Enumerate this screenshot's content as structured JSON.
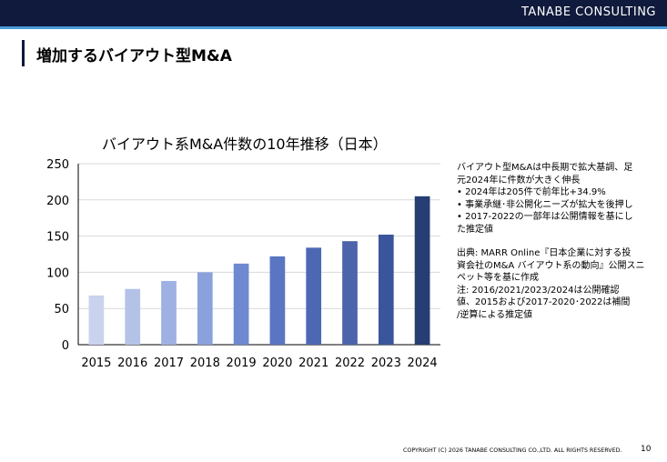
{
  "header": {
    "brand": "TANABE CONSULTING"
  },
  "slide": {
    "title": "増加するバイアウト型M&A"
  },
  "chart_data": {
    "type": "bar",
    "title": "バイアウト系M&A件数の10年推移（日本）",
    "categories": [
      "2015",
      "2016",
      "2017",
      "2018",
      "2019",
      "2020",
      "2021",
      "2022",
      "2023",
      "2024"
    ],
    "values": [
      68,
      77,
      88,
      100,
      112,
      122,
      134,
      143,
      152,
      205
    ],
    "colors": [
      "#c9d3ed",
      "#b4c2e8",
      "#9fb1e2",
      "#8aa1dc",
      "#6f89d0",
      "#5a76c2",
      "#4d68b3",
      "#4b64aa",
      "#3b559d",
      "#263e73"
    ],
    "ylim": [
      0,
      250
    ],
    "yticks": [
      0,
      50,
      100,
      150,
      200,
      250
    ],
    "grid": true,
    "xlabel": "",
    "ylabel": ""
  },
  "notes": {
    "lines": [
      "バイアウト型M&Aは中長期で拡大基調、足",
      "元2024年に件数が大きく伸長",
      "• 2024年は205件で前年比+34.9%",
      "• 事業承継･非公開化ニーズが拡大を後押し",
      "• 2017-2022の一部年は公開情報を基にし",
      "た推定値"
    ],
    "source_lines": [
      "出典: MARR Online『日本企業に対する投",
      "資会社のM&A バイアウト系の動向』公開スニ",
      "ペット等を基に作成",
      "注: 2016/2021/2023/2024は公開確認",
      "値、2015および2017-2020･2022は補間",
      "/逆算による推定値"
    ]
  },
  "footer": {
    "copyright": "COPYRIGHT (C) 2026 TANABE CONSULTING CO.,LTD.  ALL RIGHTS RESERVED.",
    "page": "10"
  }
}
